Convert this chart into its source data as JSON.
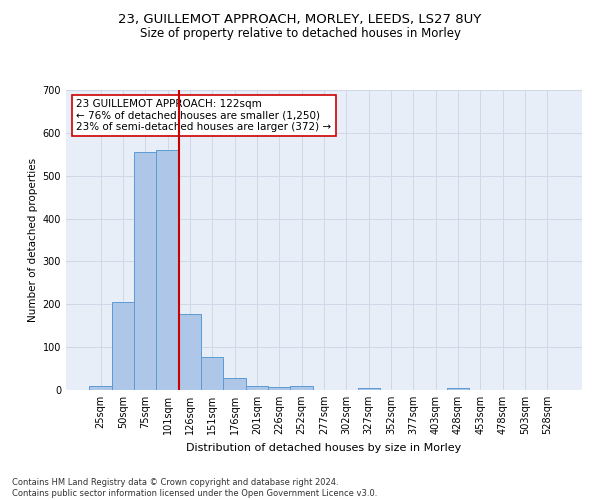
{
  "title1": "23, GUILLEMOT APPROACH, MORLEY, LEEDS, LS27 8UY",
  "title2": "Size of property relative to detached houses in Morley",
  "xlabel": "Distribution of detached houses by size in Morley",
  "ylabel": "Number of detached properties",
  "categories": [
    "25sqm",
    "50sqm",
    "75sqm",
    "101sqm",
    "126sqm",
    "151sqm",
    "176sqm",
    "201sqm",
    "226sqm",
    "252sqm",
    "277sqm",
    "302sqm",
    "327sqm",
    "352sqm",
    "377sqm",
    "403sqm",
    "428sqm",
    "453sqm",
    "478sqm",
    "503sqm",
    "528sqm"
  ],
  "values": [
    10,
    205,
    555,
    560,
    178,
    77,
    27,
    10,
    7,
    10,
    0,
    0,
    5,
    0,
    0,
    0,
    5,
    0,
    0,
    0,
    0
  ],
  "bar_color": "#aec6e8",
  "bar_edge_color": "#5b9bd5",
  "vline_color": "#cc0000",
  "vline_x": 3.5,
  "annotation_text": "23 GUILLEMOT APPROACH: 122sqm\n← 76% of detached houses are smaller (1,250)\n23% of semi-detached houses are larger (372) →",
  "annotation_box_color": "#ffffff",
  "annotation_box_edge": "#cc0000",
  "ylim": [
    0,
    700
  ],
  "yticks": [
    0,
    100,
    200,
    300,
    400,
    500,
    600,
    700
  ],
  "grid_color": "#d0d8e8",
  "background_color": "#e8eef8",
  "footer": "Contains HM Land Registry data © Crown copyright and database right 2024.\nContains public sector information licensed under the Open Government Licence v3.0.",
  "title1_fontsize": 9.5,
  "title2_fontsize": 8.5,
  "xlabel_fontsize": 8,
  "ylabel_fontsize": 7.5,
  "tick_fontsize": 7,
  "annotation_fontsize": 7.5,
  "footer_fontsize": 6
}
